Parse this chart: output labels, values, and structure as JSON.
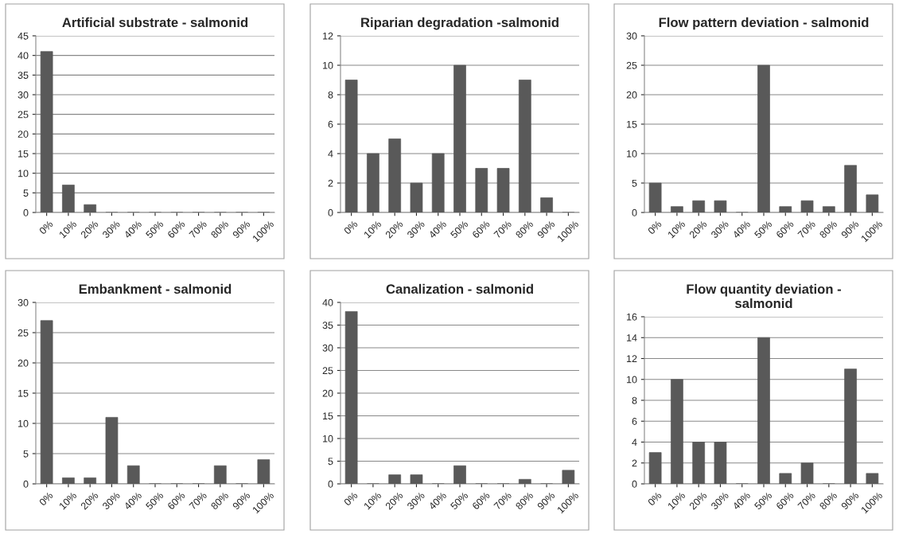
{
  "chart_data": [
    {
      "type": "bar",
      "title": "Artificial substrate - salmonid",
      "categories": [
        "0%",
        "10%",
        "20%",
        "30%",
        "40%",
        "50%",
        "60%",
        "70%",
        "80%",
        "90%",
        "100%"
      ],
      "values": [
        41,
        7,
        2,
        0,
        0,
        0,
        0,
        0,
        0,
        0,
        0
      ],
      "color": "#595959",
      "ylim": [
        0,
        45
      ],
      "yticks": [
        0,
        5,
        10,
        15,
        20,
        25,
        30,
        35,
        40,
        45
      ],
      "grid": "y",
      "legend": false
    },
    {
      "type": "bar",
      "title": "Riparian degradation -salmonid",
      "categories": [
        "0%",
        "10%",
        "20%",
        "30%",
        "40%",
        "50%",
        "60%",
        "70%",
        "80%",
        "90%",
        "100%"
      ],
      "values": [
        9,
        4,
        5,
        2,
        4,
        10,
        3,
        3,
        9,
        1,
        0
      ],
      "color": "#595959",
      "ylim": [
        0,
        12
      ],
      "yticks": [
        0,
        2,
        4,
        6,
        8,
        10,
        12
      ],
      "grid": "y",
      "legend": false
    },
    {
      "type": "bar",
      "title": "Flow pattern deviation - salmonid",
      "categories": [
        "0%",
        "10%",
        "20%",
        "30%",
        "40%",
        "50%",
        "60%",
        "70%",
        "80%",
        "90%",
        "100%"
      ],
      "values": [
        5,
        1,
        2,
        2,
        0,
        25,
        1,
        2,
        1,
        8,
        3
      ],
      "color": "#595959",
      "ylim": [
        0,
        30
      ],
      "yticks": [
        0,
        5,
        10,
        15,
        20,
        25,
        30
      ],
      "grid": "y",
      "legend": false
    },
    {
      "type": "bar",
      "title": "Embankment - salmonid",
      "categories": [
        "0%",
        "10%",
        "20%",
        "30%",
        "40%",
        "50%",
        "60%",
        "70%",
        "80%",
        "90%",
        "100%"
      ],
      "values": [
        27,
        1,
        1,
        11,
        3,
        0,
        0,
        0,
        3,
        0,
        4
      ],
      "color": "#595959",
      "ylim": [
        0,
        30
      ],
      "yticks": [
        0,
        5,
        10,
        15,
        20,
        25,
        30
      ],
      "grid": "y",
      "legend": false
    },
    {
      "type": "bar",
      "title": "Canalization - salmonid",
      "categories": [
        "0%",
        "10%",
        "20%",
        "30%",
        "40%",
        "50%",
        "60%",
        "70%",
        "80%",
        "90%",
        "100%"
      ],
      "values": [
        38,
        0,
        2,
        2,
        0,
        4,
        0,
        0,
        1,
        0,
        3
      ],
      "color": "#595959",
      "ylim": [
        0,
        40
      ],
      "yticks": [
        0,
        5,
        10,
        15,
        20,
        25,
        30,
        35,
        40
      ],
      "grid": "y",
      "legend": false
    },
    {
      "type": "bar",
      "title": "Flow quantity deviation -\nsalmonid",
      "categories": [
        "0%",
        "10%",
        "20%",
        "30%",
        "40%",
        "50%",
        "60%",
        "70%",
        "80%",
        "90%",
        "100%"
      ],
      "values": [
        3,
        10,
        4,
        4,
        0,
        14,
        1,
        2,
        0,
        11,
        1
      ],
      "color": "#595959",
      "ylim": [
        0,
        16
      ],
      "yticks": [
        0,
        2,
        4,
        6,
        8,
        10,
        12,
        14,
        16
      ],
      "grid": "y",
      "legend": false
    }
  ]
}
